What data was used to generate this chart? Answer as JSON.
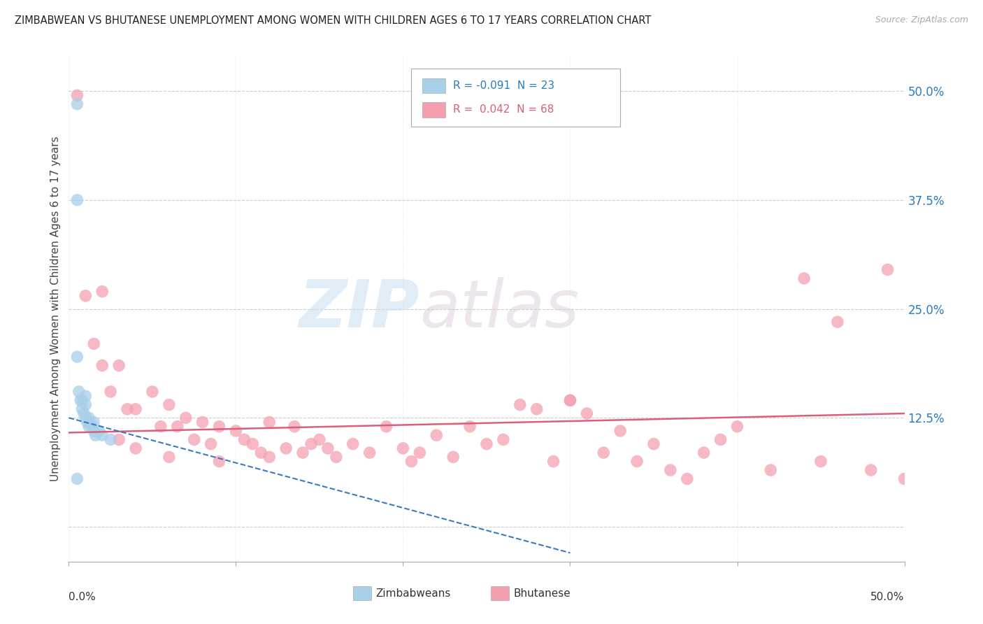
{
  "title": "ZIMBABWEAN VS BHUTANESE UNEMPLOYMENT AMONG WOMEN WITH CHILDREN AGES 6 TO 17 YEARS CORRELATION CHART",
  "source": "Source: ZipAtlas.com",
  "ylabel": "Unemployment Among Women with Children Ages 6 to 17 years",
  "xlim": [
    0.0,
    0.5
  ],
  "ylim": [
    -0.04,
    0.54
  ],
  "yticks": [
    0.0,
    0.125,
    0.25,
    0.375,
    0.5
  ],
  "ytick_labels": [
    "",
    "12.5%",
    "25.0%",
    "37.5%",
    "50.0%"
  ],
  "zim_color": "#a8d0e8",
  "bhu_color": "#f4a0b0",
  "zim_line_color": "#3a7abf",
  "bhu_line_color": "#d95f7a",
  "watermark_zip": "ZIP",
  "watermark_atlas": "atlas",
  "legend_r1_val": "R = -0.091",
  "legend_r1_n": "N = 23",
  "legend_r2_val": "R =  0.042",
  "legend_r2_n": "N = 68",
  "zim_x": [
    0.005,
    0.005,
    0.005,
    0.006,
    0.007,
    0.008,
    0.008,
    0.009,
    0.01,
    0.01,
    0.01,
    0.011,
    0.012,
    0.012,
    0.013,
    0.014,
    0.015,
    0.015,
    0.016,
    0.018,
    0.02,
    0.025,
    0.005
  ],
  "zim_y": [
    0.485,
    0.375,
    0.195,
    0.155,
    0.145,
    0.135,
    0.145,
    0.13,
    0.15,
    0.14,
    0.125,
    0.12,
    0.115,
    0.125,
    0.12,
    0.115,
    0.12,
    0.11,
    0.105,
    0.11,
    0.105,
    0.1,
    0.055
  ],
  "bhu_x": [
    0.005,
    0.01,
    0.015,
    0.02,
    0.02,
    0.025,
    0.03,
    0.03,
    0.035,
    0.04,
    0.04,
    0.05,
    0.055,
    0.06,
    0.06,
    0.065,
    0.07,
    0.075,
    0.08,
    0.085,
    0.09,
    0.09,
    0.1,
    0.105,
    0.11,
    0.115,
    0.12,
    0.12,
    0.13,
    0.135,
    0.14,
    0.145,
    0.15,
    0.155,
    0.16,
    0.17,
    0.18,
    0.19,
    0.2,
    0.205,
    0.21,
    0.22,
    0.23,
    0.24,
    0.25,
    0.26,
    0.27,
    0.28,
    0.29,
    0.3,
    0.3,
    0.31,
    0.32,
    0.33,
    0.34,
    0.35,
    0.36,
    0.37,
    0.38,
    0.39,
    0.4,
    0.42,
    0.44,
    0.45,
    0.46,
    0.48,
    0.49,
    0.5
  ],
  "bhu_y": [
    0.495,
    0.265,
    0.21,
    0.27,
    0.185,
    0.155,
    0.185,
    0.1,
    0.135,
    0.135,
    0.09,
    0.155,
    0.115,
    0.14,
    0.08,
    0.115,
    0.125,
    0.1,
    0.12,
    0.095,
    0.115,
    0.075,
    0.11,
    0.1,
    0.095,
    0.085,
    0.12,
    0.08,
    0.09,
    0.115,
    0.085,
    0.095,
    0.1,
    0.09,
    0.08,
    0.095,
    0.085,
    0.115,
    0.09,
    0.075,
    0.085,
    0.105,
    0.08,
    0.115,
    0.095,
    0.1,
    0.14,
    0.135,
    0.075,
    0.145,
    0.145,
    0.13,
    0.085,
    0.11,
    0.075,
    0.095,
    0.065,
    0.055,
    0.085,
    0.1,
    0.115,
    0.065,
    0.285,
    0.075,
    0.235,
    0.065,
    0.295,
    0.055
  ]
}
